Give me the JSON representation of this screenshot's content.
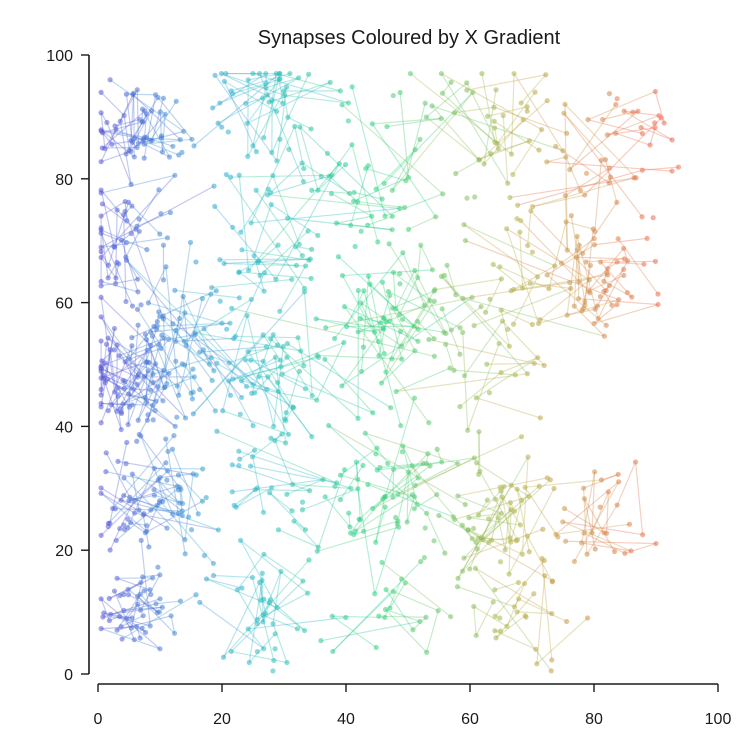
{
  "chart_data": {
    "type": "scatter",
    "title": "Synapses Coloured by X Gradient",
    "xlabel": "",
    "ylabel": "",
    "xlim": [
      0,
      100
    ],
    "ylim": [
      0,
      100
    ],
    "xticks": [
      "0",
      "20",
      "40",
      "60",
      "80",
      "100"
    ],
    "yticks": [
      "0",
      "20",
      "40",
      "60",
      "80",
      "100"
    ],
    "grid": false,
    "legend": "none",
    "color_map": [
      "#5b55d9",
      "#2bb6d0",
      "#2fd37f",
      "#b5b247",
      "#ee6a4d"
    ],
    "clusters": [
      {
        "x": 6,
        "y": 88,
        "spread": 4,
        "n": 60
      },
      {
        "x": 4,
        "y": 70,
        "spread": 5,
        "n": 50
      },
      {
        "x": 5,
        "y": 48,
        "spread": 5,
        "n": 90
      },
      {
        "x": 8,
        "y": 28,
        "spread": 5,
        "n": 80
      },
      {
        "x": 6,
        "y": 10,
        "spread": 4,
        "n": 50
      },
      {
        "x": 14,
        "y": 55,
        "spread": 6,
        "n": 60
      },
      {
        "x": 28,
        "y": 92,
        "spread": 5,
        "n": 50
      },
      {
        "x": 28,
        "y": 70,
        "spread": 6,
        "n": 40
      },
      {
        "x": 27,
        "y": 48,
        "spread": 6,
        "n": 50
      },
      {
        "x": 28,
        "y": 30,
        "spread": 5,
        "n": 30
      },
      {
        "x": 27,
        "y": 10,
        "spread": 5,
        "n": 40
      },
      {
        "x": 38,
        "y": 80,
        "spread": 7,
        "n": 30
      },
      {
        "x": 40,
        "y": 55,
        "spread": 7,
        "n": 40
      },
      {
        "x": 45,
        "y": 28,
        "spread": 6,
        "n": 40
      },
      {
        "x": 47,
        "y": 10,
        "spread": 5,
        "n": 20
      },
      {
        "x": 50,
        "y": 85,
        "spread": 6,
        "n": 30
      },
      {
        "x": 50,
        "y": 60,
        "spread": 6,
        "n": 40
      },
      {
        "x": 52,
        "y": 30,
        "spread": 6,
        "n": 30
      },
      {
        "x": 60,
        "y": 50,
        "spread": 7,
        "n": 35
      },
      {
        "x": 66,
        "y": 88,
        "spread": 6,
        "n": 40
      },
      {
        "x": 65,
        "y": 25,
        "spread": 5,
        "n": 60
      },
      {
        "x": 68,
        "y": 10,
        "spread": 5,
        "n": 30
      },
      {
        "x": 72,
        "y": 65,
        "spread": 7,
        "n": 40
      },
      {
        "x": 80,
        "y": 80,
        "spread": 6,
        "n": 30
      },
      {
        "x": 82,
        "y": 64,
        "spread": 5,
        "n": 40
      },
      {
        "x": 82,
        "y": 25,
        "spread": 5,
        "n": 30
      },
      {
        "x": 86,
        "y": 88,
        "spread": 4,
        "n": 20
      }
    ]
  }
}
